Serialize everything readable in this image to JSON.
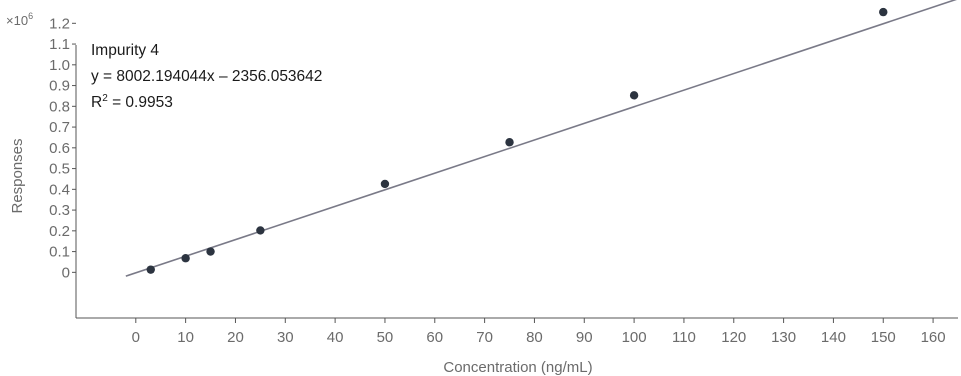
{
  "chart_data": {
    "type": "scatter",
    "title": "",
    "xlabel": "Concentration (ng/mL)",
    "ylabel": "Responses",
    "y_multiplier": "×10",
    "y_multiplier_exp": "6",
    "xlim": [
      -12,
      165
    ],
    "ylim": [
      -0.22,
      1.24
    ],
    "x_ticks": [
      0,
      10,
      20,
      30,
      40,
      50,
      60,
      70,
      80,
      90,
      100,
      110,
      120,
      130,
      140,
      150,
      160
    ],
    "y_ticks": [
      0,
      0.1,
      0.2,
      0.3,
      0.4,
      0.5,
      0.6,
      0.7,
      0.8,
      0.9,
      1.0,
      1.1,
      1.2
    ],
    "y_tick_labels": [
      "0",
      "0.1",
      "0.2",
      "0.3",
      "0.4",
      "0.5",
      "0.6",
      "0.7",
      "0.8",
      "0.9",
      "1.0",
      "1.1",
      "1.2"
    ],
    "grid": false,
    "series": [
      {
        "x": [
          3,
          10,
          15,
          25,
          50,
          75,
          100,
          150
        ],
        "y": [
          0.013,
          0.068,
          0.1,
          0.202,
          0.426,
          0.627,
          0.853,
          1.254
        ]
      }
    ],
    "fit": {
      "slope": 0.008002194044,
      "intercept": -0.002356053642,
      "x_range": [
        -2,
        165
      ]
    },
    "annotation": {
      "name": "Impurity 4",
      "equation": "y = 8002.194044x – 2356.053642",
      "r2_prefix": "R",
      "r2_sup": "2",
      "r2_value": " = 0.9953"
    },
    "colors": {
      "marker": "#2c3440",
      "fit_line": "#7a7a88",
      "axis": "#555555",
      "text": "#6b6b6b"
    }
  }
}
